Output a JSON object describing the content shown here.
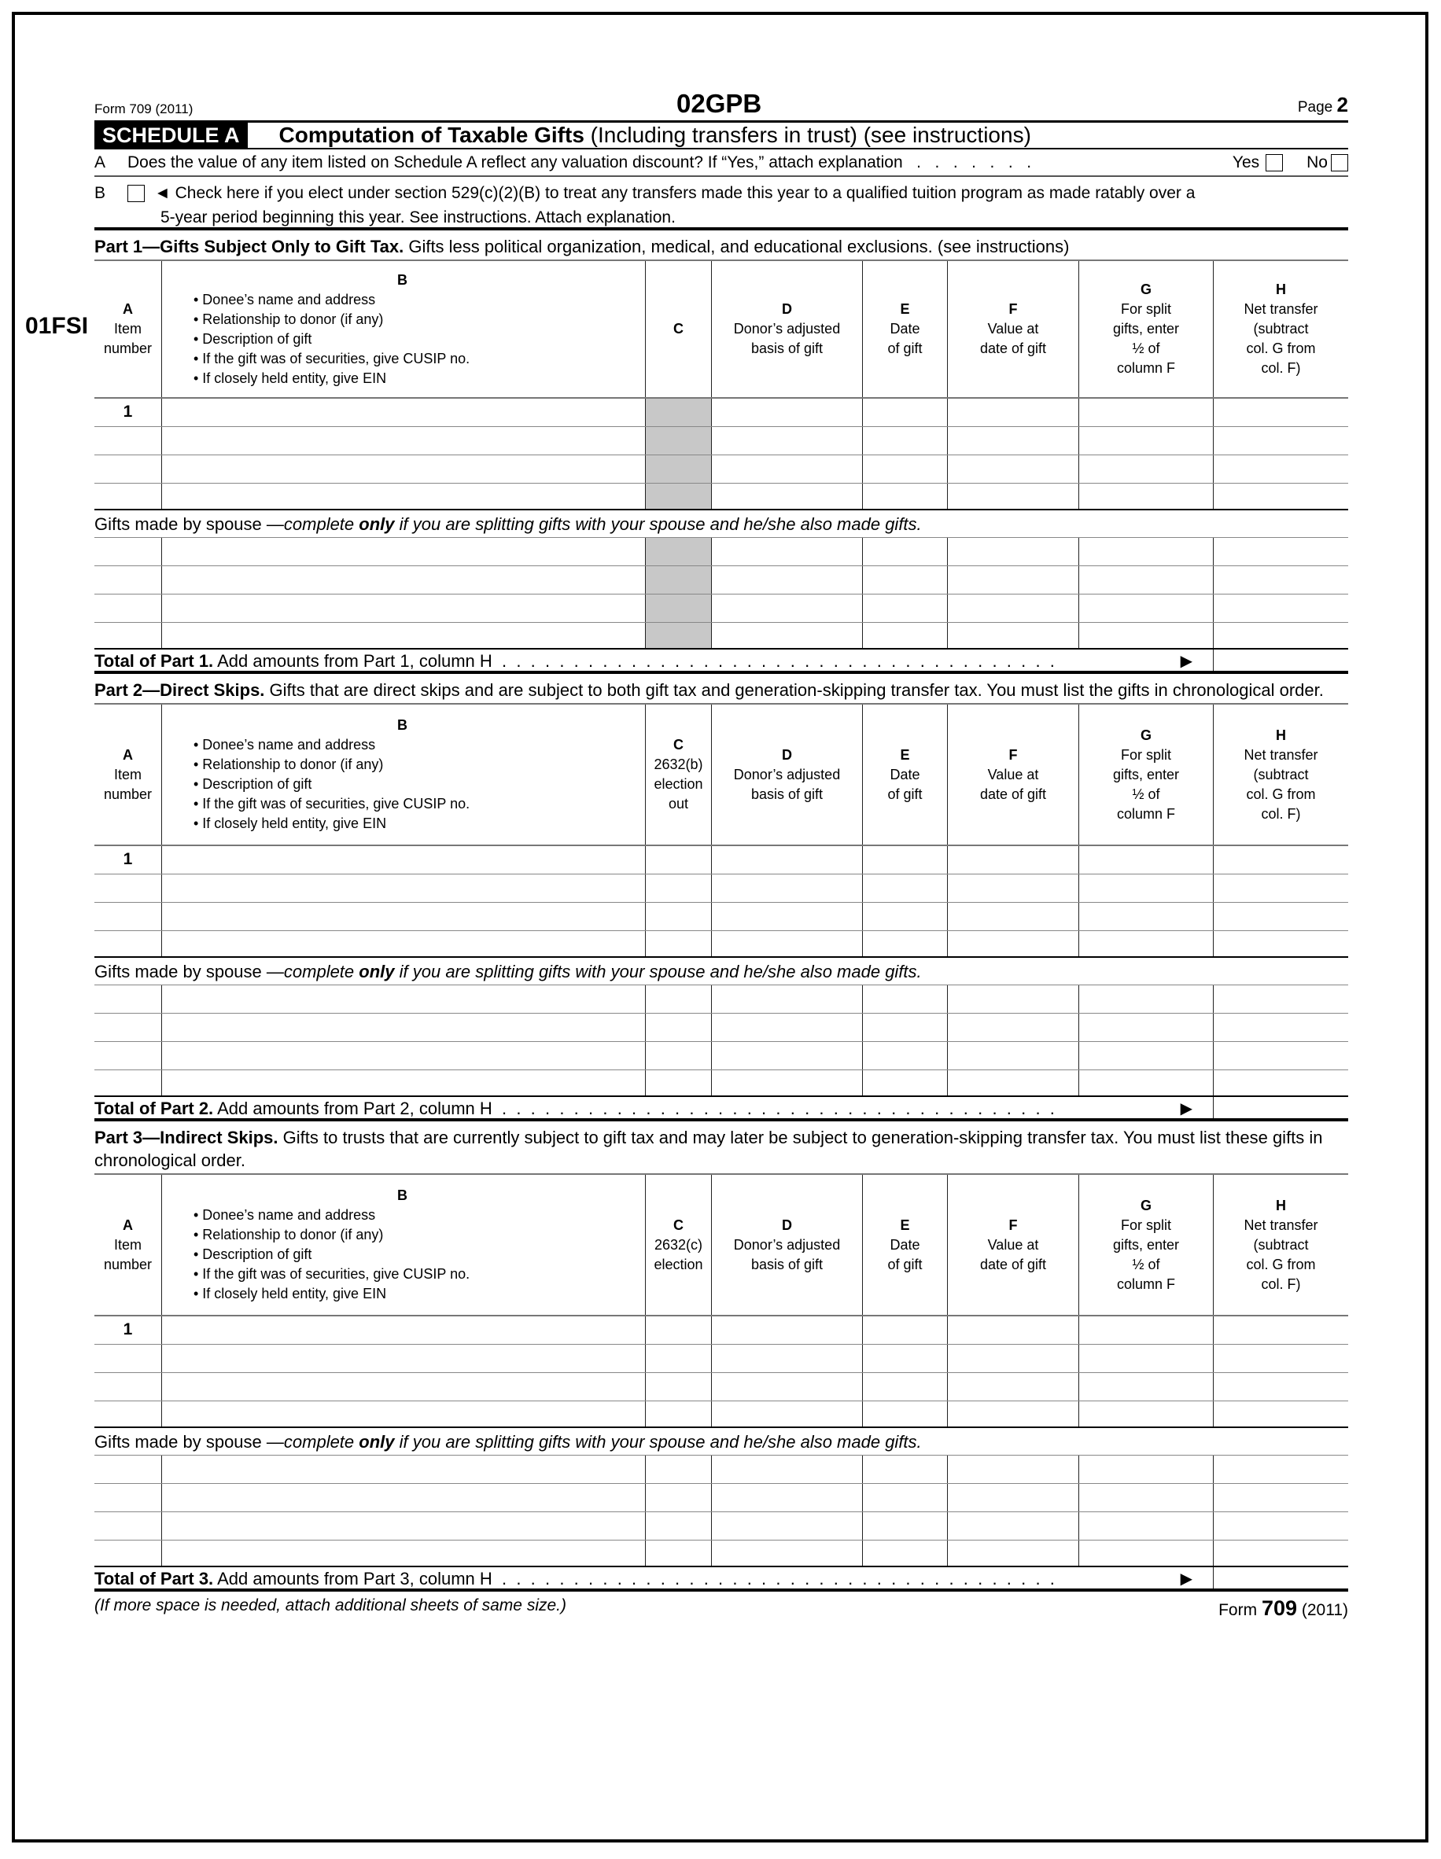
{
  "header": {
    "form_label": "Form 709 (2011)",
    "code_top": "02GPB",
    "page_label": "Page",
    "page_number": "2",
    "side_code": "01FSI"
  },
  "schedule": {
    "tag": "SCHEDULE A",
    "title_bold": "Computation of Taxable Gifts",
    "title_rest": " (Including transfers in trust) (see instructions)"
  },
  "question_a": {
    "letter": "A",
    "text": "Does the value of any item listed on Schedule A reflect any valuation discount? If “Yes,” attach explanation   .   .   .   .   .   .   .",
    "yes": "Yes",
    "no": "No"
  },
  "question_b": {
    "letter": "B",
    "text1": "◄ Check here if you elect under section 529(c)(2)(B) to treat any transfers made this year to a qualified tuition program as made ratably over a",
    "text2": "5-year period beginning this year. See instructions. Attach explanation."
  },
  "columns": {
    "a": [
      "A",
      "Item",
      "number"
    ],
    "b_letter": "B",
    "b_items": [
      "• Donee’s name and address",
      "• Relationship to donor (if any)",
      "• Description of gift",
      "• If the gift was of securities, give CUSIP no.",
      "• If closely held entity, give EIN"
    ],
    "d": [
      "D",
      "Donor’s adjusted",
      "basis of gift"
    ],
    "e": [
      "E",
      "Date",
      "of gift"
    ],
    "f": [
      "F",
      "Value at",
      "date of gift"
    ],
    "g": [
      "G",
      "For split",
      "gifts, enter",
      "½ of",
      "column F"
    ],
    "h": [
      "H",
      "Net transfer",
      "(subtract",
      "col. G from",
      "col. F)"
    ]
  },
  "spouse_line": {
    "plain": "Gifts made by spouse —",
    "italic1": "complete ",
    "bold_italic": "only",
    "italic2": " if you are splitting gifts with your spouse and he/she also made gifts."
  },
  "parts": [
    {
      "title_bold": "Part 1—Gifts Subject Only to Gift Tax.",
      "title_rest": " Gifts less political organization, medical, and educational exclusions. (see instructions)",
      "col_c": [
        "C"
      ],
      "shaded_c": true,
      "first_item": "1",
      "total_bold": "Total of Part 1.",
      "total_rest": " Add amounts from Part 1, column H  .  .  .  .  .  .  .  .  .  .  .  .  .  .  .  .  .  .  .  .  .  .  .  .  .  .  .  .  .  .  .  .  .  .  .  .  .  .  ."
    },
    {
      "title_bold": "Part 2—Direct Skips.",
      "title_rest": " Gifts that are direct skips and are subject to both gift tax and generation-skipping transfer tax. You must list the gifts in chronological order.",
      "col_c": [
        "C",
        "2632(b)",
        "election",
        "out"
      ],
      "shaded_c": false,
      "first_item": "1",
      "total_bold": "Total of Part 2.",
      "total_rest": " Add amounts from Part 2, column H  .  .  .  .  .  .  .  .  .  .  .  .  .  .  .  .  .  .  .  .  .  .  .  .  .  .  .  .  .  .  .  .  .  .  .  .  .  .  ."
    },
    {
      "title_bold": "Part 3—Indirect Skips.",
      "title_rest": " Gifts to trusts that are currently subject to gift tax and may later be subject to generation-skipping transfer tax. You must list these gifts in chronological order.",
      "col_c": [
        "C",
        "2632(c)",
        "election"
      ],
      "shaded_c": false,
      "first_item": "1",
      "total_bold": "Total of Part 3.",
      "total_rest": " Add amounts from Part 3, column H  .  .  .  .  .  .  .  .  .  .  .  .  .  .  .  .  .  .  .  .  .  .  .  .  .  .  .  .  .  .  .  .  .  .  .  .  .  .  ."
    }
  ],
  "total_arrow": "▶",
  "footer": {
    "note": "(If more space is needed, attach additional sheets of same size.)",
    "form_word": "Form",
    "form_number": "709",
    "form_year": "(2011)"
  }
}
